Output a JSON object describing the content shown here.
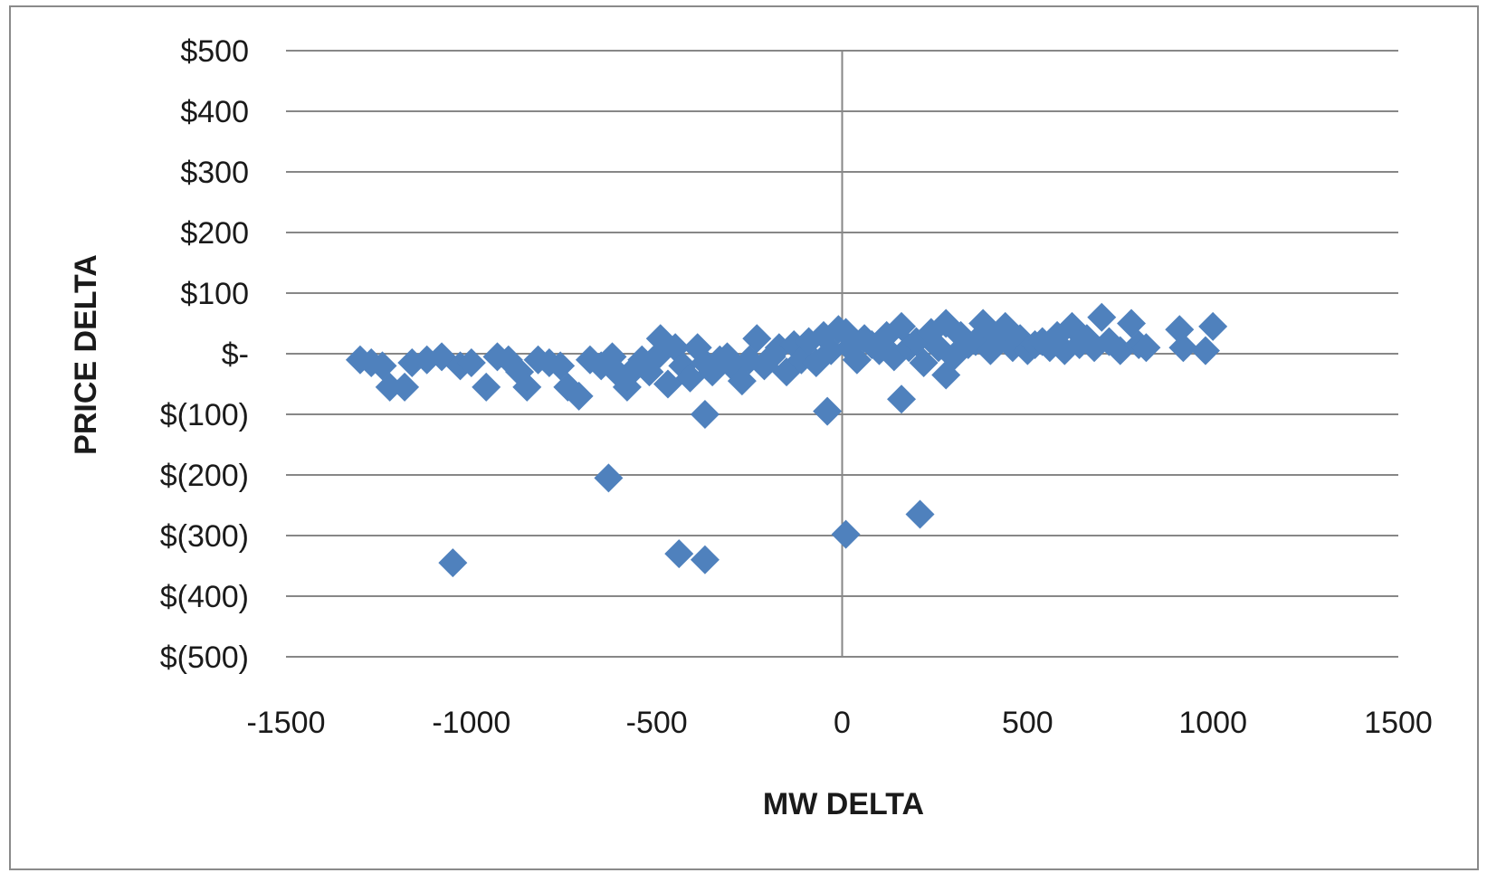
{
  "chart_data": {
    "type": "scatter",
    "title": "",
    "xlabel": "MW DELTA",
    "ylabel": "PRICE DELTA",
    "xlim": [
      -1500,
      1500
    ],
    "ylim": [
      -500,
      500
    ],
    "x_ticks": [
      -1500,
      -1000,
      -500,
      0,
      500,
      1000,
      1500
    ],
    "x_tick_labels": [
      "-1500",
      "-1000",
      "-500",
      "0",
      "500",
      "1000",
      "1500"
    ],
    "y_ticks": [
      500,
      400,
      300,
      200,
      100,
      0,
      -100,
      -200,
      -300,
      -400,
      -500
    ],
    "y_tick_labels": [
      "$500",
      "$400",
      "$300",
      "$200",
      "$100",
      "$-",
      "$(100)",
      "$(200)",
      "$(300)",
      "$(400)",
      "$(500)"
    ],
    "grid": true,
    "legend": "none",
    "marker": "diamond",
    "colors": {
      "marker": "#4f81bd",
      "grid": "#878787",
      "frame": "#8a8a8a"
    },
    "series": [
      {
        "points": [
          [
            -1300,
            -10
          ],
          [
            -1270,
            -15
          ],
          [
            -1240,
            -20
          ],
          [
            -1220,
            -55
          ],
          [
            -1180,
            -55
          ],
          [
            -1160,
            -15
          ],
          [
            -1120,
            -10
          ],
          [
            -1080,
            -5
          ],
          [
            -1030,
            -20
          ],
          [
            -1000,
            -15
          ],
          [
            -960,
            -55
          ],
          [
            -930,
            -5
          ],
          [
            -900,
            -10
          ],
          [
            -870,
            -30
          ],
          [
            -850,
            -55
          ],
          [
            -820,
            -10
          ],
          [
            -790,
            -15
          ],
          [
            -760,
            -20
          ],
          [
            -740,
            -55
          ],
          [
            -710,
            -70
          ],
          [
            -680,
            -10
          ],
          [
            -650,
            -20
          ],
          [
            -620,
            -5
          ],
          [
            -600,
            -35
          ],
          [
            -580,
            -55
          ],
          [
            -560,
            -25
          ],
          [
            -540,
            -10
          ],
          [
            -520,
            -30
          ],
          [
            -500,
            -5
          ],
          [
            -490,
            25
          ],
          [
            -470,
            -50
          ],
          [
            -450,
            10
          ],
          [
            -430,
            -20
          ],
          [
            -410,
            -40
          ],
          [
            -390,
            10
          ],
          [
            -370,
            -15
          ],
          [
            -350,
            -30
          ],
          [
            -330,
            -10
          ],
          [
            -310,
            -5
          ],
          [
            -290,
            -25
          ],
          [
            -270,
            -45
          ],
          [
            -250,
            -10
          ],
          [
            -230,
            25
          ],
          [
            -210,
            -20
          ],
          [
            -190,
            -5
          ],
          [
            -170,
            10
          ],
          [
            -150,
            -30
          ],
          [
            -130,
            15
          ],
          [
            -110,
            -10
          ],
          [
            -90,
            20
          ],
          [
            -70,
            -15
          ],
          [
            -50,
            30
          ],
          [
            -30,
            5
          ],
          [
            -10,
            40
          ],
          [
            10,
            35
          ],
          [
            20,
            10
          ],
          [
            40,
            -10
          ],
          [
            60,
            25
          ],
          [
            80,
            15
          ],
          [
            100,
            5
          ],
          [
            120,
            30
          ],
          [
            140,
            -5
          ],
          [
            160,
            45
          ],
          [
            180,
            10
          ],
          [
            200,
            20
          ],
          [
            220,
            -15
          ],
          [
            240,
            35
          ],
          [
            260,
            10
          ],
          [
            280,
            50
          ],
          [
            300,
            -5
          ],
          [
            320,
            30
          ],
          [
            340,
            15
          ],
          [
            360,
            20
          ],
          [
            380,
            50
          ],
          [
            400,
            5
          ],
          [
            420,
            30
          ],
          [
            440,
            45
          ],
          [
            460,
            10
          ],
          [
            480,
            25
          ],
          [
            500,
            5
          ],
          [
            520,
            15
          ],
          [
            540,
            20
          ],
          [
            560,
            10
          ],
          [
            580,
            30
          ],
          [
            600,
            5
          ],
          [
            620,
            45
          ],
          [
            640,
            15
          ],
          [
            660,
            25
          ],
          [
            680,
            10
          ],
          [
            700,
            60
          ],
          [
            720,
            20
          ],
          [
            750,
            5
          ],
          [
            780,
            50
          ],
          [
            800,
            15
          ],
          [
            820,
            10
          ],
          [
            910,
            40
          ],
          [
            920,
            10
          ],
          [
            980,
            5
          ],
          [
            1000,
            45
          ],
          [
            -1050,
            -345
          ],
          [
            -630,
            -205
          ],
          [
            -440,
            -330
          ],
          [
            -370,
            -340
          ],
          [
            -370,
            -100
          ],
          [
            -40,
            -95
          ],
          [
            10,
            -298
          ],
          [
            160,
            -75
          ],
          [
            210,
            -265
          ],
          [
            280,
            -35
          ]
        ]
      }
    ]
  }
}
